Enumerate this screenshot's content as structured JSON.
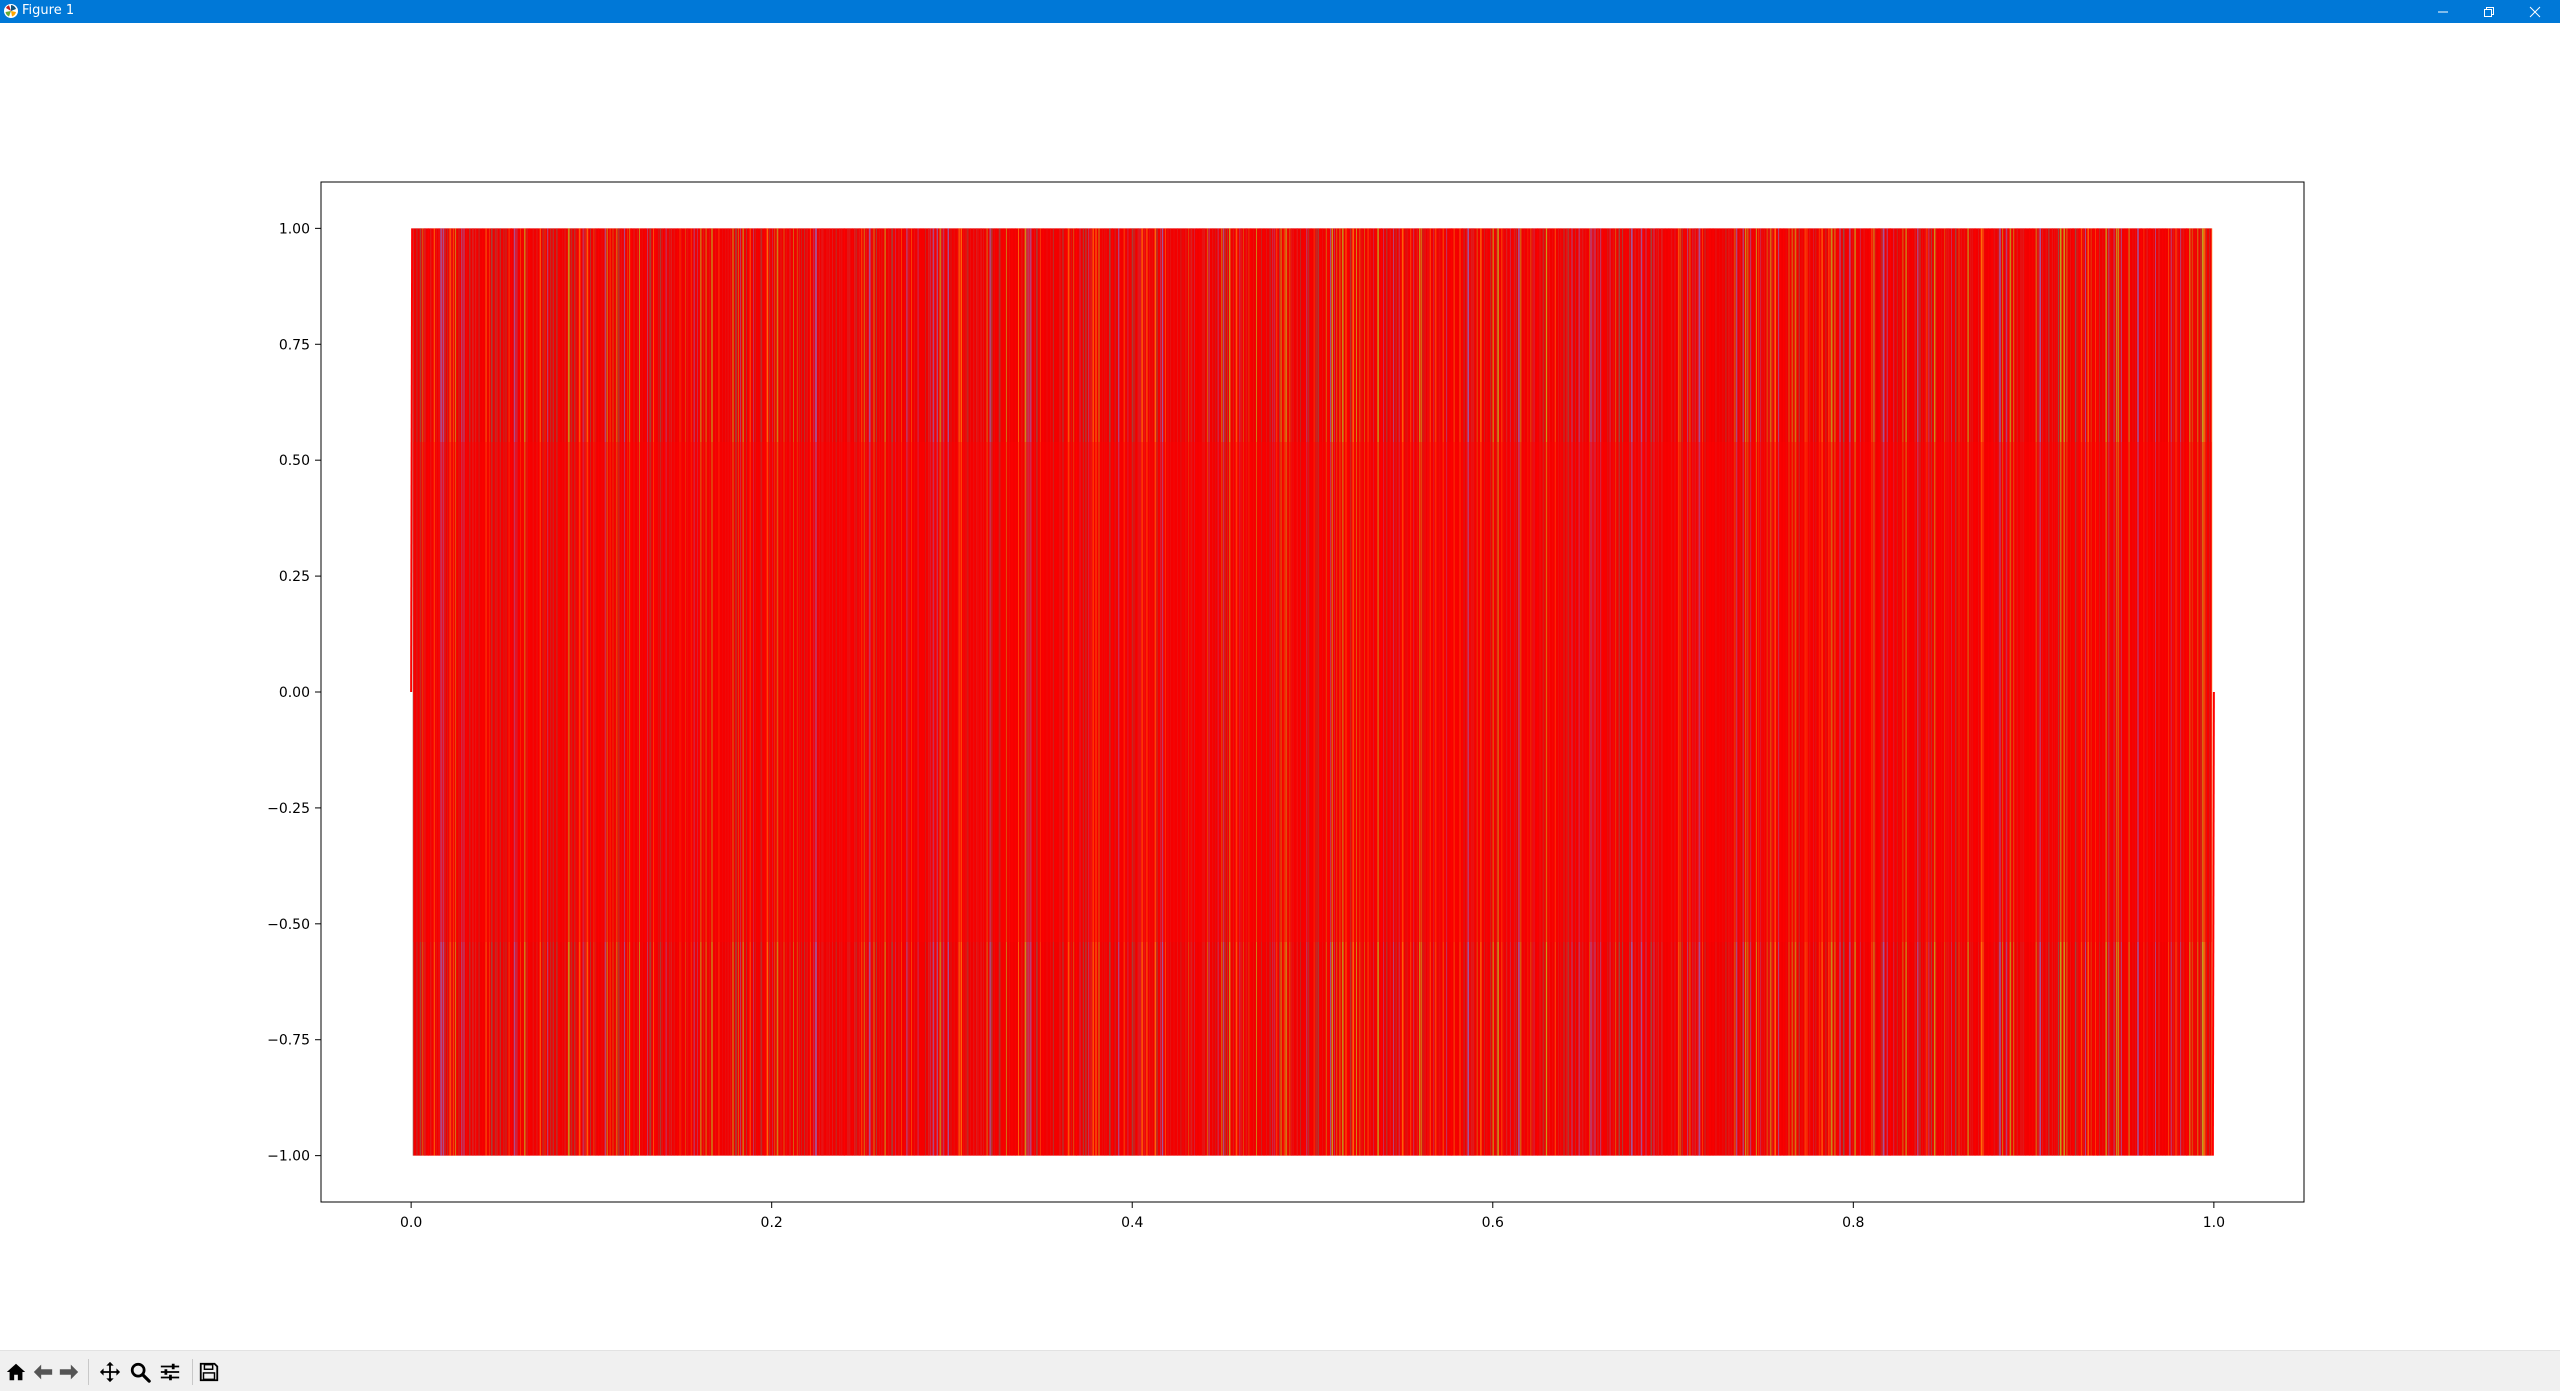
{
  "window": {
    "title": "Figure 1",
    "controls": [
      "minimize",
      "restore",
      "close"
    ]
  },
  "toolbar": {
    "buttons": [
      {
        "name": "home",
        "icon": "home-icon"
      },
      {
        "name": "back",
        "icon": "arrow-left-icon"
      },
      {
        "name": "forward",
        "icon": "arrow-right-icon"
      },
      {
        "name": "pan",
        "icon": "move-icon"
      },
      {
        "name": "zoom",
        "icon": "magnifier-icon"
      },
      {
        "name": "configure-subplots",
        "icon": "sliders-icon"
      },
      {
        "name": "save",
        "icon": "floppy-disk-icon"
      }
    ]
  },
  "chart_data": {
    "type": "line",
    "title": "",
    "xlabel": "",
    "ylabel": "",
    "xlim": [
      -0.05,
      1.05
    ],
    "ylim": [
      -1.1,
      1.1
    ],
    "xticks": [
      0.0,
      0.2,
      0.4,
      0.6,
      0.8,
      1.0
    ],
    "xtick_labels": [
      "0.0",
      "0.2",
      "0.4",
      "0.6",
      "0.8",
      "1.0"
    ],
    "yticks": [
      1.0,
      0.75,
      0.5,
      0.25,
      0.0,
      -0.25,
      -0.5,
      -0.75,
      -1.0
    ],
    "ytick_labels": [
      "1.00",
      "0.75",
      "0.50",
      "0.25",
      "0.00",
      "−0.25",
      "−0.50",
      "−0.75",
      "−1.00"
    ],
    "grid": false,
    "legend": false,
    "x_range": [
      0.0,
      1.0
    ],
    "y_range": [
      -1.0,
      1.0
    ],
    "colors": [
      "#ff0000",
      "#d62728",
      "#ff7f0e",
      "#9467bd",
      "#8c564b",
      "#bcbd22",
      "#e31a1c"
    ],
    "description_values": "dense square-wave style oscillation between -1.00 and 1.00 over x from 0.0 to 1.0"
  }
}
